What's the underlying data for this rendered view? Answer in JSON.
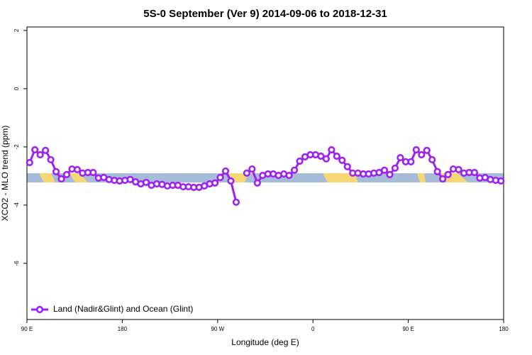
{
  "chart_data": {
    "type": "line",
    "title": "5S-0 September (Ver 9)   2014-09-06 to 2018-12-31",
    "x_label": "Longitude (deg E)",
    "y_label": "XCO2 - MLO trend (ppm)",
    "x": [
      92.5,
      97.5,
      102.5,
      107.5,
      112.5,
      117.5,
      122.5,
      127.5,
      132.5,
      137.5,
      142.5,
      147.5,
      152.5,
      157.5,
      162.5,
      167.5,
      172.5,
      177.5,
      182.5,
      187.5,
      192.5,
      197.5,
      202.5,
      207.5,
      212.5,
      217.5,
      222.5,
      227.5,
      232.5,
      237.5,
      242.5,
      247.5,
      252.5,
      257.5,
      262.5,
      267.5,
      272.5,
      277.5,
      282.5,
      287.5,
      292.5,
      297.5,
      302.5,
      307.5,
      312.5,
      317.5,
      322.5,
      327.5,
      332.5,
      337.5,
      342.5,
      347.5,
      352.5,
      357.5,
      362.5,
      367.5,
      372.5,
      377.5,
      382.5,
      387.5,
      392.5,
      397.5,
      402.5,
      407.5,
      412.5,
      417.5,
      422.5,
      427.5,
      432.5,
      437.5,
      442.5,
      447.5,
      452.5,
      457.5,
      462.5,
      467.5,
      472.5,
      477.5,
      482.5,
      487.5,
      492.5,
      497.5,
      502.5,
      507.5,
      512.5,
      517.5,
      522.5,
      527.5,
      532.5,
      537.5
    ],
    "series": [
      {
        "name": "Land (Nadir&Glint) and Ocean (Glint)",
        "color": "#a020f0",
        "values": [
          -2.54,
          -2.1,
          -2.27,
          -2.12,
          -2.44,
          -2.85,
          -3.1,
          -2.95,
          -2.76,
          -2.78,
          -2.9,
          -2.88,
          -2.88,
          -3.07,
          -3.05,
          -3.12,
          -3.15,
          -3.17,
          -3.15,
          -3.12,
          -3.2,
          -3.27,
          -3.22,
          -3.32,
          -3.27,
          -3.29,
          -3.34,
          -3.32,
          -3.32,
          -3.37,
          -3.37,
          -3.39,
          -3.39,
          -3.34,
          -3.27,
          -3.24,
          -3.05,
          -2.83,
          -3.17,
          -3.9,
          null,
          -2.9,
          -2.76,
          -3.24,
          -2.98,
          -2.93,
          -2.93,
          -2.98,
          -2.93,
          -2.98,
          -2.8,
          -2.49,
          -2.34,
          -2.27,
          -2.27,
          -2.32,
          -2.41,
          -2.1,
          -2.32,
          -2.46,
          -2.68,
          -2.9,
          -2.9,
          -2.93,
          -2.93,
          -2.9,
          -2.88,
          -2.8,
          -2.95,
          -2.73,
          -2.37,
          -2.51,
          -2.51,
          -2.1,
          -2.27,
          -2.12,
          -2.44,
          -2.85,
          -3.1,
          -2.95,
          -2.76,
          -2.78,
          -2.9,
          -2.88,
          -2.88,
          -3.07,
          -3.05,
          -3.12,
          -3.15,
          -3.17
        ]
      }
    ],
    "xlim": [
      90,
      540
    ],
    "xticks": [
      {
        "value": 90,
        "label": "90 E"
      },
      180,
      {
        "value": 270,
        "label": "90 W"
      },
      {
        "value": 360,
        "label": "0"
      },
      {
        "value": 450,
        "label": "90 E"
      },
      {
        "value": 540,
        "label": "180"
      }
    ],
    "ylim": [
      -7.93,
      2.12
    ],
    "yticks": [
      2,
      0,
      -2,
      -4,
      -6
    ],
    "legend": "bottom-left"
  }
}
